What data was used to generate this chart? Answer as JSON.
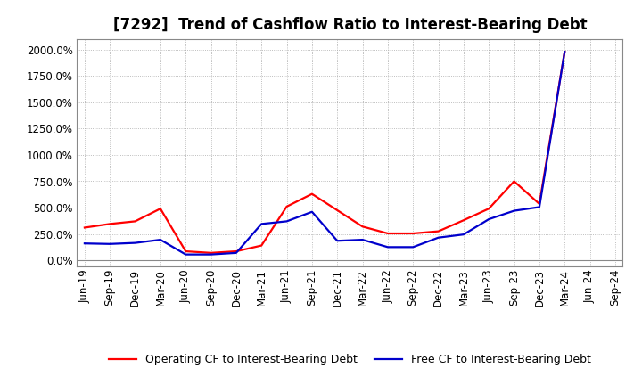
{
  "title": "[7292]  Trend of Cashflow Ratio to Interest-Bearing Debt",
  "x_labels": [
    "Jun-19",
    "Sep-19",
    "Dec-19",
    "Mar-20",
    "Jun-20",
    "Sep-20",
    "Dec-20",
    "Mar-21",
    "Jun-21",
    "Sep-21",
    "Dec-21",
    "Mar-22",
    "Jun-22",
    "Sep-22",
    "Dec-22",
    "Mar-23",
    "Jun-23",
    "Sep-23",
    "Dec-23",
    "Mar-24",
    "Jun-24",
    "Sep-24"
  ],
  "operating_cf": [
    310,
    345,
    370,
    490,
    85,
    70,
    85,
    140,
    510,
    630,
    475,
    320,
    255,
    255,
    275,
    380,
    490,
    750,
    535,
    1980,
    null,
    null
  ],
  "free_cf": [
    160,
    155,
    165,
    195,
    55,
    55,
    70,
    345,
    370,
    460,
    185,
    195,
    125,
    125,
    215,
    245,
    390,
    470,
    505,
    1980,
    null,
    null
  ],
  "operating_color": "#ff0000",
  "free_color": "#0000cc",
  "ylim": [
    -60,
    2100
  ],
  "yticks": [
    0,
    250,
    500,
    750,
    1000,
    1250,
    1500,
    1750,
    2000
  ],
  "grid_color": "#aaaaaa",
  "background_color": "#ffffff",
  "legend_op": "Operating CF to Interest-Bearing Debt",
  "legend_free": "Free CF to Interest-Bearing Debt",
  "title_fontsize": 12,
  "axis_fontsize": 8.5,
  "legend_fontsize": 9,
  "line_width": 1.6
}
